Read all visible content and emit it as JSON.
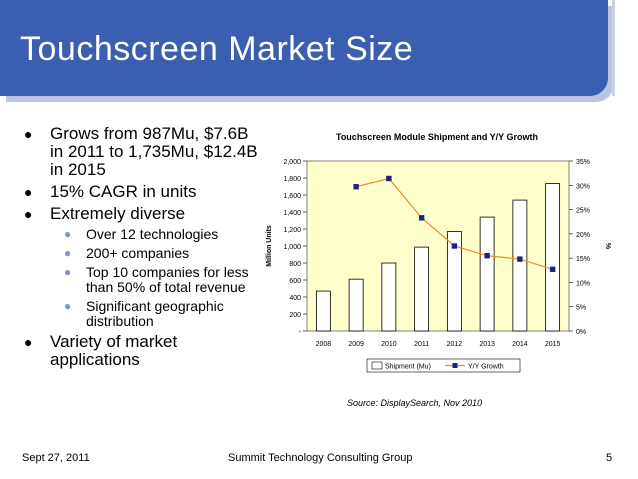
{
  "slide": {
    "title": "Touchscreen Market Size",
    "bullets": [
      {
        "text": "Grows from 987Mu, $7.6B in 2011 to 1,735Mu, $12.4B in 2015",
        "sub": []
      },
      {
        "text": "15% CAGR in units",
        "sub": []
      },
      {
        "text": "Extremely diverse",
        "sub": [
          "Over 12 technologies",
          "200+ companies",
          "Top 10 companies for less than 50% of total revenue",
          "Significant geographic distribution"
        ]
      },
      {
        "text": "Variety of market applications",
        "sub": []
      }
    ],
    "source": "Source: DisplaySearch, Nov 2010",
    "footer_left": "Sept 27, 2011",
    "footer_center": "Summit Technology Consulting Group",
    "footer_right": "5"
  },
  "chart_data": {
    "type": "bar",
    "title": "Touchscreen Module Shipment and Y/Y Growth",
    "categories": [
      "2008",
      "2009",
      "2010",
      "2011",
      "2012",
      "2013",
      "2014",
      "2015"
    ],
    "series": [
      {
        "name": "Shipment (Mu)",
        "type": "bar",
        "axis": "left",
        "values": [
          470,
          610,
          800,
          987,
          1170,
          1340,
          1540,
          1735
        ]
      },
      {
        "name": "Y/Y Growth",
        "type": "line",
        "axis": "right",
        "values": [
          null,
          0.297,
          0.314,
          0.233,
          0.175,
          0.155,
          0.148,
          0.127
        ]
      }
    ],
    "ylabel": "Million Units",
    "y2label": "%",
    "ylim": [
      0,
      2000
    ],
    "y2lim": [
      0,
      0.35
    ],
    "yticks": [
      "-",
      "200",
      "400",
      "600",
      "800",
      "1,000",
      "1,200",
      "1,400",
      "1,600",
      "1,800",
      "2,000"
    ],
    "y2ticks": [
      "0%",
      "5%",
      "10%",
      "15%",
      "20%",
      "25%",
      "30%",
      "35%"
    ],
    "legend": {
      "position": "bottom"
    },
    "colors": {
      "plot_bg": "#ffffcc",
      "bar_fill": "#ffffff",
      "line": "#f08a24",
      "marker": "#1a237e"
    }
  }
}
